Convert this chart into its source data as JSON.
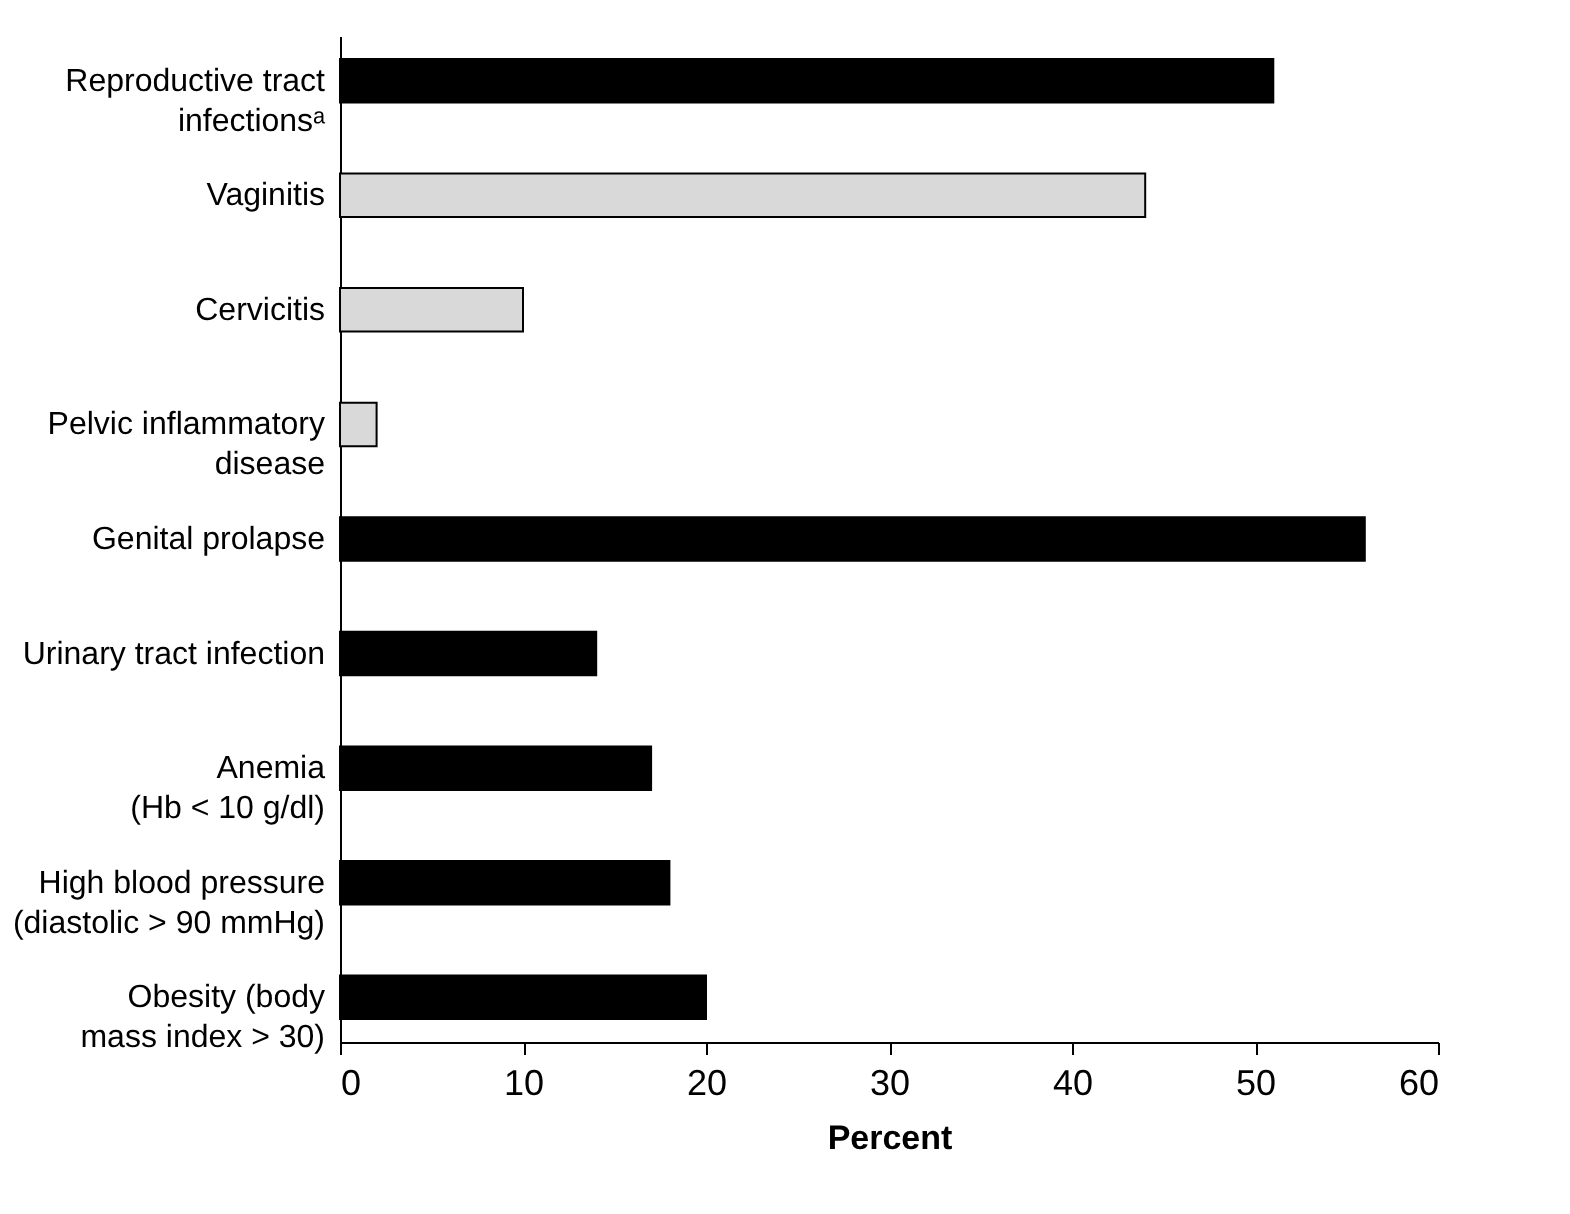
{
  "chart_data": {
    "type": "bar",
    "orientation": "horizontal",
    "xlabel": "Percent",
    "categories": [
      "Reproductive tract\ninfectionsᵃ",
      "Vaginitis",
      "Cervicitis",
      "Pelvic inflammatory\ndisease",
      "Genital prolapse",
      "Urinary tract infection",
      "Anemia\n(Hb < 10 g/dl)",
      "High blood pressure\n(diastolic > 90 mmHg)",
      "Obesity (body\nmass index > 30)"
    ],
    "values": [
      51,
      44,
      10,
      2,
      56,
      14,
      17,
      18,
      20
    ],
    "colors": [
      "#000000",
      "#d9d9d9",
      "#d9d9d9",
      "#d9d9d9",
      "#000000",
      "#000000",
      "#000000",
      "#000000",
      "#000000"
    ],
    "xlim": [
      0,
      60
    ],
    "xticks": [
      0,
      10,
      20,
      30,
      40,
      50,
      60
    ],
    "grid": false,
    "legend": false
  }
}
